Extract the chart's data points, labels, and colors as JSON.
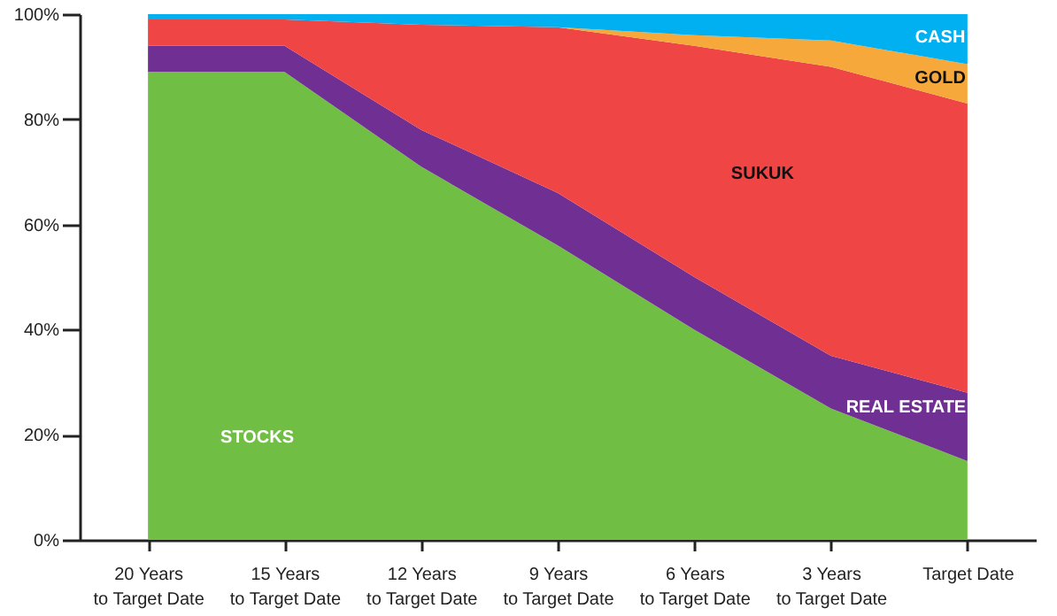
{
  "chart_data": {
    "type": "area",
    "stacked": true,
    "grid": false,
    "categories": [
      "20 Years to Target Date",
      "15 Years to Target Date",
      "12 Years to Target Date",
      "9 Years to Target Date",
      "6 Years to Target Date",
      "3 Years to Target Date",
      "Target Date"
    ],
    "ylim": [
      0,
      100
    ],
    "yticks": [
      {
        "value": 0,
        "label": "0%"
      },
      {
        "value": 20,
        "label": "20%"
      },
      {
        "value": 40,
        "label": "40%"
      },
      {
        "value": 60,
        "label": "60%"
      },
      {
        "value": 80,
        "label": "80%"
      },
      {
        "value": 100,
        "label": "100%"
      }
    ],
    "series": [
      {
        "name": "STOCKS",
        "color": "#70bf44",
        "values": [
          89,
          89,
          71,
          56,
          40,
          25,
          15
        ]
      },
      {
        "name": "REAL ESTATE",
        "color": "#702f92",
        "values": [
          5,
          5,
          7,
          10,
          10,
          10,
          13
        ]
      },
      {
        "name": "SUKUK",
        "color": "#f04545",
        "values": [
          5,
          5,
          20,
          31.5,
          44,
          55,
          55
        ]
      },
      {
        "name": "GOLD",
        "color": "#f6a83a",
        "values": [
          0,
          0,
          0,
          0,
          2,
          5,
          7.5
        ]
      },
      {
        "name": "CASH",
        "color": "#00b0f0",
        "values": [
          1,
          1,
          2,
          2.5,
          4,
          5,
          9.5
        ]
      }
    ]
  }
}
